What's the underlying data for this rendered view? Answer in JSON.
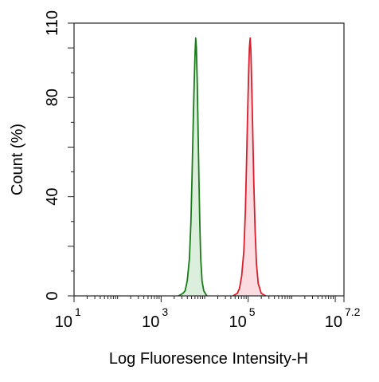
{
  "chart_data": {
    "type": "area",
    "title": "",
    "xlabel": "Log Fluoresence Intensity-H",
    "ylabel": "Count  (%)",
    "x_scale": "log",
    "xlim": [
      10,
      15848931.92
    ],
    "ylim": [
      0,
      110
    ],
    "x_ticks": [
      {
        "base": "10",
        "exp": "1",
        "value": 10
      },
      {
        "base": "10",
        "exp": "3",
        "value": 1000
      },
      {
        "base": "10",
        "exp": "5",
        "value": 100000
      },
      {
        "base": "10",
        "exp": "7.2",
        "value": 15848931.92
      }
    ],
    "y_ticks": [
      {
        "label": "0",
        "value": 0
      },
      {
        "label": "40",
        "value": 40
      },
      {
        "label": "80",
        "value": 80
      },
      {
        "label": "110",
        "value": 110
      }
    ],
    "grid": false,
    "series": [
      {
        "color": "#1a7a1a",
        "fill": "#dcefdc",
        "points": [
          [
            2512,
            0
          ],
          [
            3162,
            1
          ],
          [
            3548,
            2
          ],
          [
            3981,
            6
          ],
          [
            4467,
            15
          ],
          [
            4841,
            30
          ],
          [
            5129,
            48
          ],
          [
            5433,
            68
          ],
          [
            5754,
            86
          ],
          [
            6026,
            98
          ],
          [
            6237,
            104
          ],
          [
            6457,
            100
          ],
          [
            6761,
            86
          ],
          [
            7079,
            66
          ],
          [
            7413,
            46
          ],
          [
            7762,
            28
          ],
          [
            8128,
            15
          ],
          [
            8710,
            6
          ],
          [
            9550,
            2
          ],
          [
            11220,
            0
          ]
        ]
      },
      {
        "color": "#d81e2c",
        "fill": "#fbdde1",
        "points": [
          [
            44668,
            0
          ],
          [
            56234,
            1
          ],
          [
            63096,
            3
          ],
          [
            70795,
            8
          ],
          [
            79433,
            18
          ],
          [
            86099,
            34
          ],
          [
            91201,
            52
          ],
          [
            96605,
            72
          ],
          [
            102329,
            90
          ],
          [
            106660,
            100
          ],
          [
            110917,
            104
          ],
          [
            115345,
            99
          ],
          [
            120226,
            86
          ],
          [
            127350,
            66
          ],
          [
            134896,
            45
          ],
          [
            144544,
            26
          ],
          [
            154882,
            13
          ],
          [
            169824,
            5
          ],
          [
            199526,
            1
          ],
          [
            251189,
            0
          ]
        ]
      }
    ]
  }
}
